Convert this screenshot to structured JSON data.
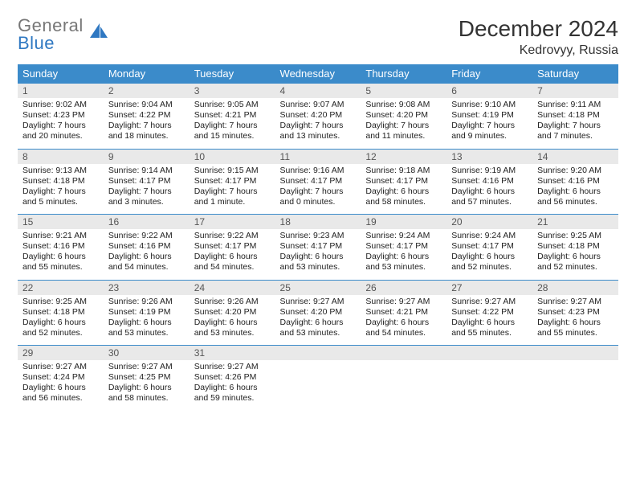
{
  "brand": {
    "line1": "General",
    "line2": "Blue"
  },
  "title": "December 2024",
  "location": "Kedrovyy, Russia",
  "colors": {
    "header_bg": "#3b8bca",
    "header_text": "#ffffff",
    "daynum_bg": "#e9e9e9",
    "row_border": "#3b8bca",
    "brand_gray": "#777777",
    "brand_blue": "#2f78c2",
    "body_bg": "#ffffff"
  },
  "weekdays": [
    "Sunday",
    "Monday",
    "Tuesday",
    "Wednesday",
    "Thursday",
    "Friday",
    "Saturday"
  ],
  "first_weekday_index": 0,
  "days": [
    {
      "n": 1,
      "sunrise": "9:02 AM",
      "sunset": "4:23 PM",
      "daylight": "7 hours and 20 minutes."
    },
    {
      "n": 2,
      "sunrise": "9:04 AM",
      "sunset": "4:22 PM",
      "daylight": "7 hours and 18 minutes."
    },
    {
      "n": 3,
      "sunrise": "9:05 AM",
      "sunset": "4:21 PM",
      "daylight": "7 hours and 15 minutes."
    },
    {
      "n": 4,
      "sunrise": "9:07 AM",
      "sunset": "4:20 PM",
      "daylight": "7 hours and 13 minutes."
    },
    {
      "n": 5,
      "sunrise": "9:08 AM",
      "sunset": "4:20 PM",
      "daylight": "7 hours and 11 minutes."
    },
    {
      "n": 6,
      "sunrise": "9:10 AM",
      "sunset": "4:19 PM",
      "daylight": "7 hours and 9 minutes."
    },
    {
      "n": 7,
      "sunrise": "9:11 AM",
      "sunset": "4:18 PM",
      "daylight": "7 hours and 7 minutes."
    },
    {
      "n": 8,
      "sunrise": "9:13 AM",
      "sunset": "4:18 PM",
      "daylight": "7 hours and 5 minutes."
    },
    {
      "n": 9,
      "sunrise": "9:14 AM",
      "sunset": "4:17 PM",
      "daylight": "7 hours and 3 minutes."
    },
    {
      "n": 10,
      "sunrise": "9:15 AM",
      "sunset": "4:17 PM",
      "daylight": "7 hours and 1 minute."
    },
    {
      "n": 11,
      "sunrise": "9:16 AM",
      "sunset": "4:17 PM",
      "daylight": "7 hours and 0 minutes."
    },
    {
      "n": 12,
      "sunrise": "9:18 AM",
      "sunset": "4:17 PM",
      "daylight": "6 hours and 58 minutes."
    },
    {
      "n": 13,
      "sunrise": "9:19 AM",
      "sunset": "4:16 PM",
      "daylight": "6 hours and 57 minutes."
    },
    {
      "n": 14,
      "sunrise": "9:20 AM",
      "sunset": "4:16 PM",
      "daylight": "6 hours and 56 minutes."
    },
    {
      "n": 15,
      "sunrise": "9:21 AM",
      "sunset": "4:16 PM",
      "daylight": "6 hours and 55 minutes."
    },
    {
      "n": 16,
      "sunrise": "9:22 AM",
      "sunset": "4:16 PM",
      "daylight": "6 hours and 54 minutes."
    },
    {
      "n": 17,
      "sunrise": "9:22 AM",
      "sunset": "4:17 PM",
      "daylight": "6 hours and 54 minutes."
    },
    {
      "n": 18,
      "sunrise": "9:23 AM",
      "sunset": "4:17 PM",
      "daylight": "6 hours and 53 minutes."
    },
    {
      "n": 19,
      "sunrise": "9:24 AM",
      "sunset": "4:17 PM",
      "daylight": "6 hours and 53 minutes."
    },
    {
      "n": 20,
      "sunrise": "9:24 AM",
      "sunset": "4:17 PM",
      "daylight": "6 hours and 52 minutes."
    },
    {
      "n": 21,
      "sunrise": "9:25 AM",
      "sunset": "4:18 PM",
      "daylight": "6 hours and 52 minutes."
    },
    {
      "n": 22,
      "sunrise": "9:25 AM",
      "sunset": "4:18 PM",
      "daylight": "6 hours and 52 minutes."
    },
    {
      "n": 23,
      "sunrise": "9:26 AM",
      "sunset": "4:19 PM",
      "daylight": "6 hours and 53 minutes."
    },
    {
      "n": 24,
      "sunrise": "9:26 AM",
      "sunset": "4:20 PM",
      "daylight": "6 hours and 53 minutes."
    },
    {
      "n": 25,
      "sunrise": "9:27 AM",
      "sunset": "4:20 PM",
      "daylight": "6 hours and 53 minutes."
    },
    {
      "n": 26,
      "sunrise": "9:27 AM",
      "sunset": "4:21 PM",
      "daylight": "6 hours and 54 minutes."
    },
    {
      "n": 27,
      "sunrise": "9:27 AM",
      "sunset": "4:22 PM",
      "daylight": "6 hours and 55 minutes."
    },
    {
      "n": 28,
      "sunrise": "9:27 AM",
      "sunset": "4:23 PM",
      "daylight": "6 hours and 55 minutes."
    },
    {
      "n": 29,
      "sunrise": "9:27 AM",
      "sunset": "4:24 PM",
      "daylight": "6 hours and 56 minutes."
    },
    {
      "n": 30,
      "sunrise": "9:27 AM",
      "sunset": "4:25 PM",
      "daylight": "6 hours and 58 minutes."
    },
    {
      "n": 31,
      "sunrise": "9:27 AM",
      "sunset": "4:26 PM",
      "daylight": "6 hours and 59 minutes."
    }
  ],
  "labels": {
    "sunrise": "Sunrise:",
    "sunset": "Sunset:",
    "daylight": "Daylight:"
  }
}
